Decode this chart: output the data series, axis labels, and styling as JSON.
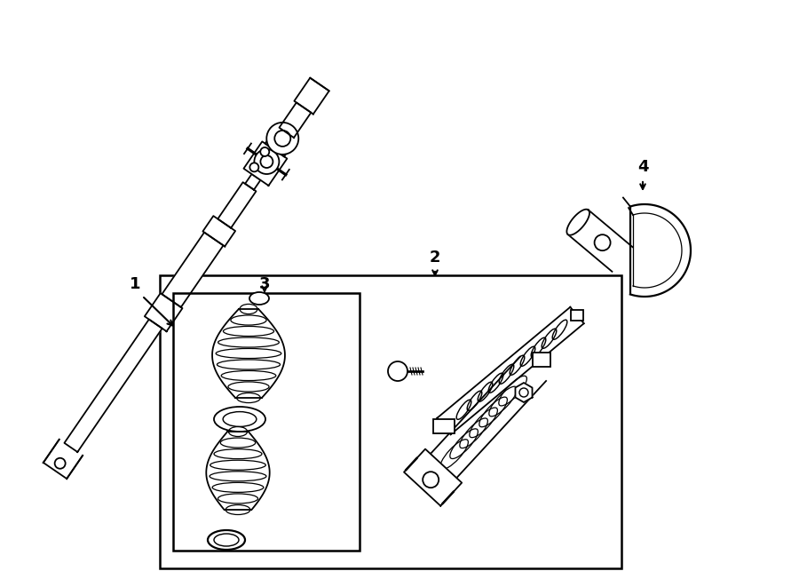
{
  "background_color": "#ffffff",
  "line_color": "#000000",
  "lw": 1.3,
  "label_fontsize": 13,
  "figsize": [
    9.0,
    6.61
  ],
  "dpi": 100,
  "xlim": [
    0,
    900
  ],
  "ylim": [
    0,
    661
  ]
}
